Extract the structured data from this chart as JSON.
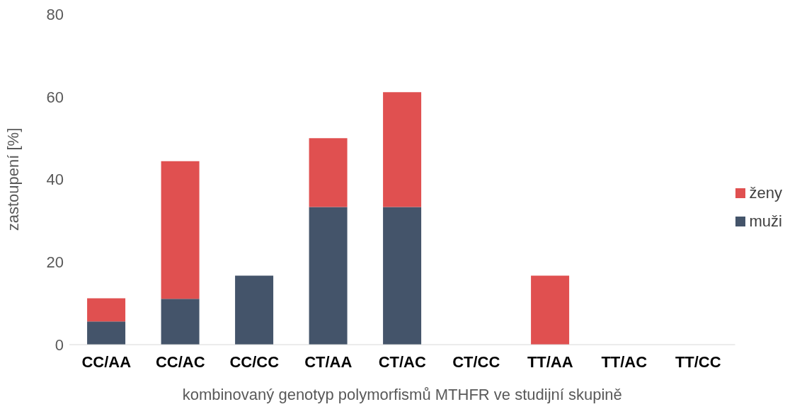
{
  "chart_data": {
    "type": "bar",
    "stacked": true,
    "xlabel": "kombinovaný genotyp polymorfismů MTHFR ve studijní skupině",
    "ylabel": "zastoupení [%]",
    "categories": [
      "CC/AA",
      "CC/AC",
      "CC/CC",
      "CT/AA",
      "CT/AC",
      "CT/CC",
      "TT/AA",
      "TT/AC",
      "TT/CC"
    ],
    "series": [
      {
        "name": "muži",
        "color": "#44546a",
        "values": [
          5.6,
          11.1,
          16.7,
          33.3,
          33.3,
          0,
          0,
          0,
          0
        ]
      },
      {
        "name": "ženy",
        "color": "#e05050",
        "values": [
          5.6,
          33.3,
          0,
          16.7,
          27.8,
          0,
          16.7,
          0,
          0
        ]
      }
    ],
    "ylim": [
      0,
      80
    ],
    "yticks": [
      0,
      20,
      40,
      60,
      80
    ],
    "legend": "right"
  }
}
